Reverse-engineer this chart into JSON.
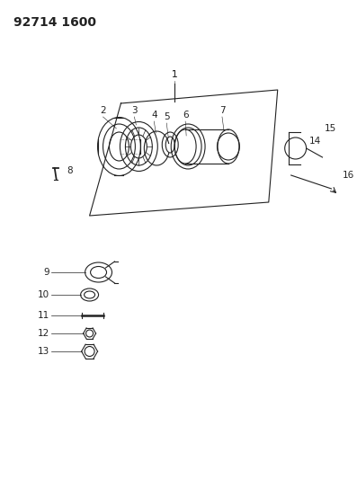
{
  "title": "92714 1600",
  "bg_color": "#ffffff",
  "line_color": "#222222",
  "title_fontsize": 10,
  "label_fontsize": 7.5,
  "fig_width": 3.97,
  "fig_height": 5.33,
  "dpi": 100
}
